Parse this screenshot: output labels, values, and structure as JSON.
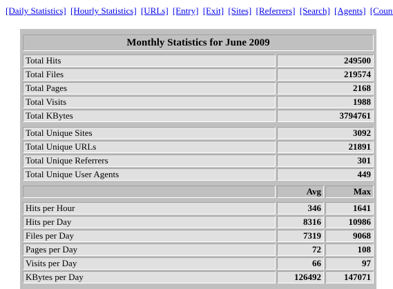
{
  "nav": [
    "[Daily Statistics]",
    "[Hourly Statistics]",
    "[URLs]",
    "[Entry]",
    "[Exit]",
    "[Sites]",
    "[Referrers]",
    "[Search]",
    "[Agents]",
    "[Countries]"
  ],
  "table": {
    "title": "Monthly Statistics for June 2009",
    "totals": [
      {
        "label": "Total Hits",
        "value": 249500
      },
      {
        "label": "Total Files",
        "value": 219574
      },
      {
        "label": "Total Pages",
        "value": 2168
      },
      {
        "label": "Total Visits",
        "value": 1988
      },
      {
        "label": "Total KBytes",
        "value": 3794761
      }
    ],
    "unique": [
      {
        "label": "Total Unique Sites",
        "value": 3092
      },
      {
        "label": "Total Unique URLs",
        "value": 21891
      },
      {
        "label": "Total Unique Referrers",
        "value": 301
      },
      {
        "label": "Total Unique User Agents",
        "value": 449
      }
    ],
    "avg_header": "Avg",
    "max_header": "Max",
    "rates": [
      {
        "label": "Hits per Hour",
        "avg": 346,
        "max": 1641
      },
      {
        "label": "Hits per Day",
        "avg": 8316,
        "max": 10986
      },
      {
        "label": "Files per Day",
        "avg": 7319,
        "max": 9068
      },
      {
        "label": "Pages per Day",
        "avg": 72,
        "max": 108
      },
      {
        "label": "Visits per Day",
        "avg": 66,
        "max": 97
      },
      {
        "label": "KBytes per Day",
        "avg": 126492,
        "max": 147071
      }
    ]
  }
}
